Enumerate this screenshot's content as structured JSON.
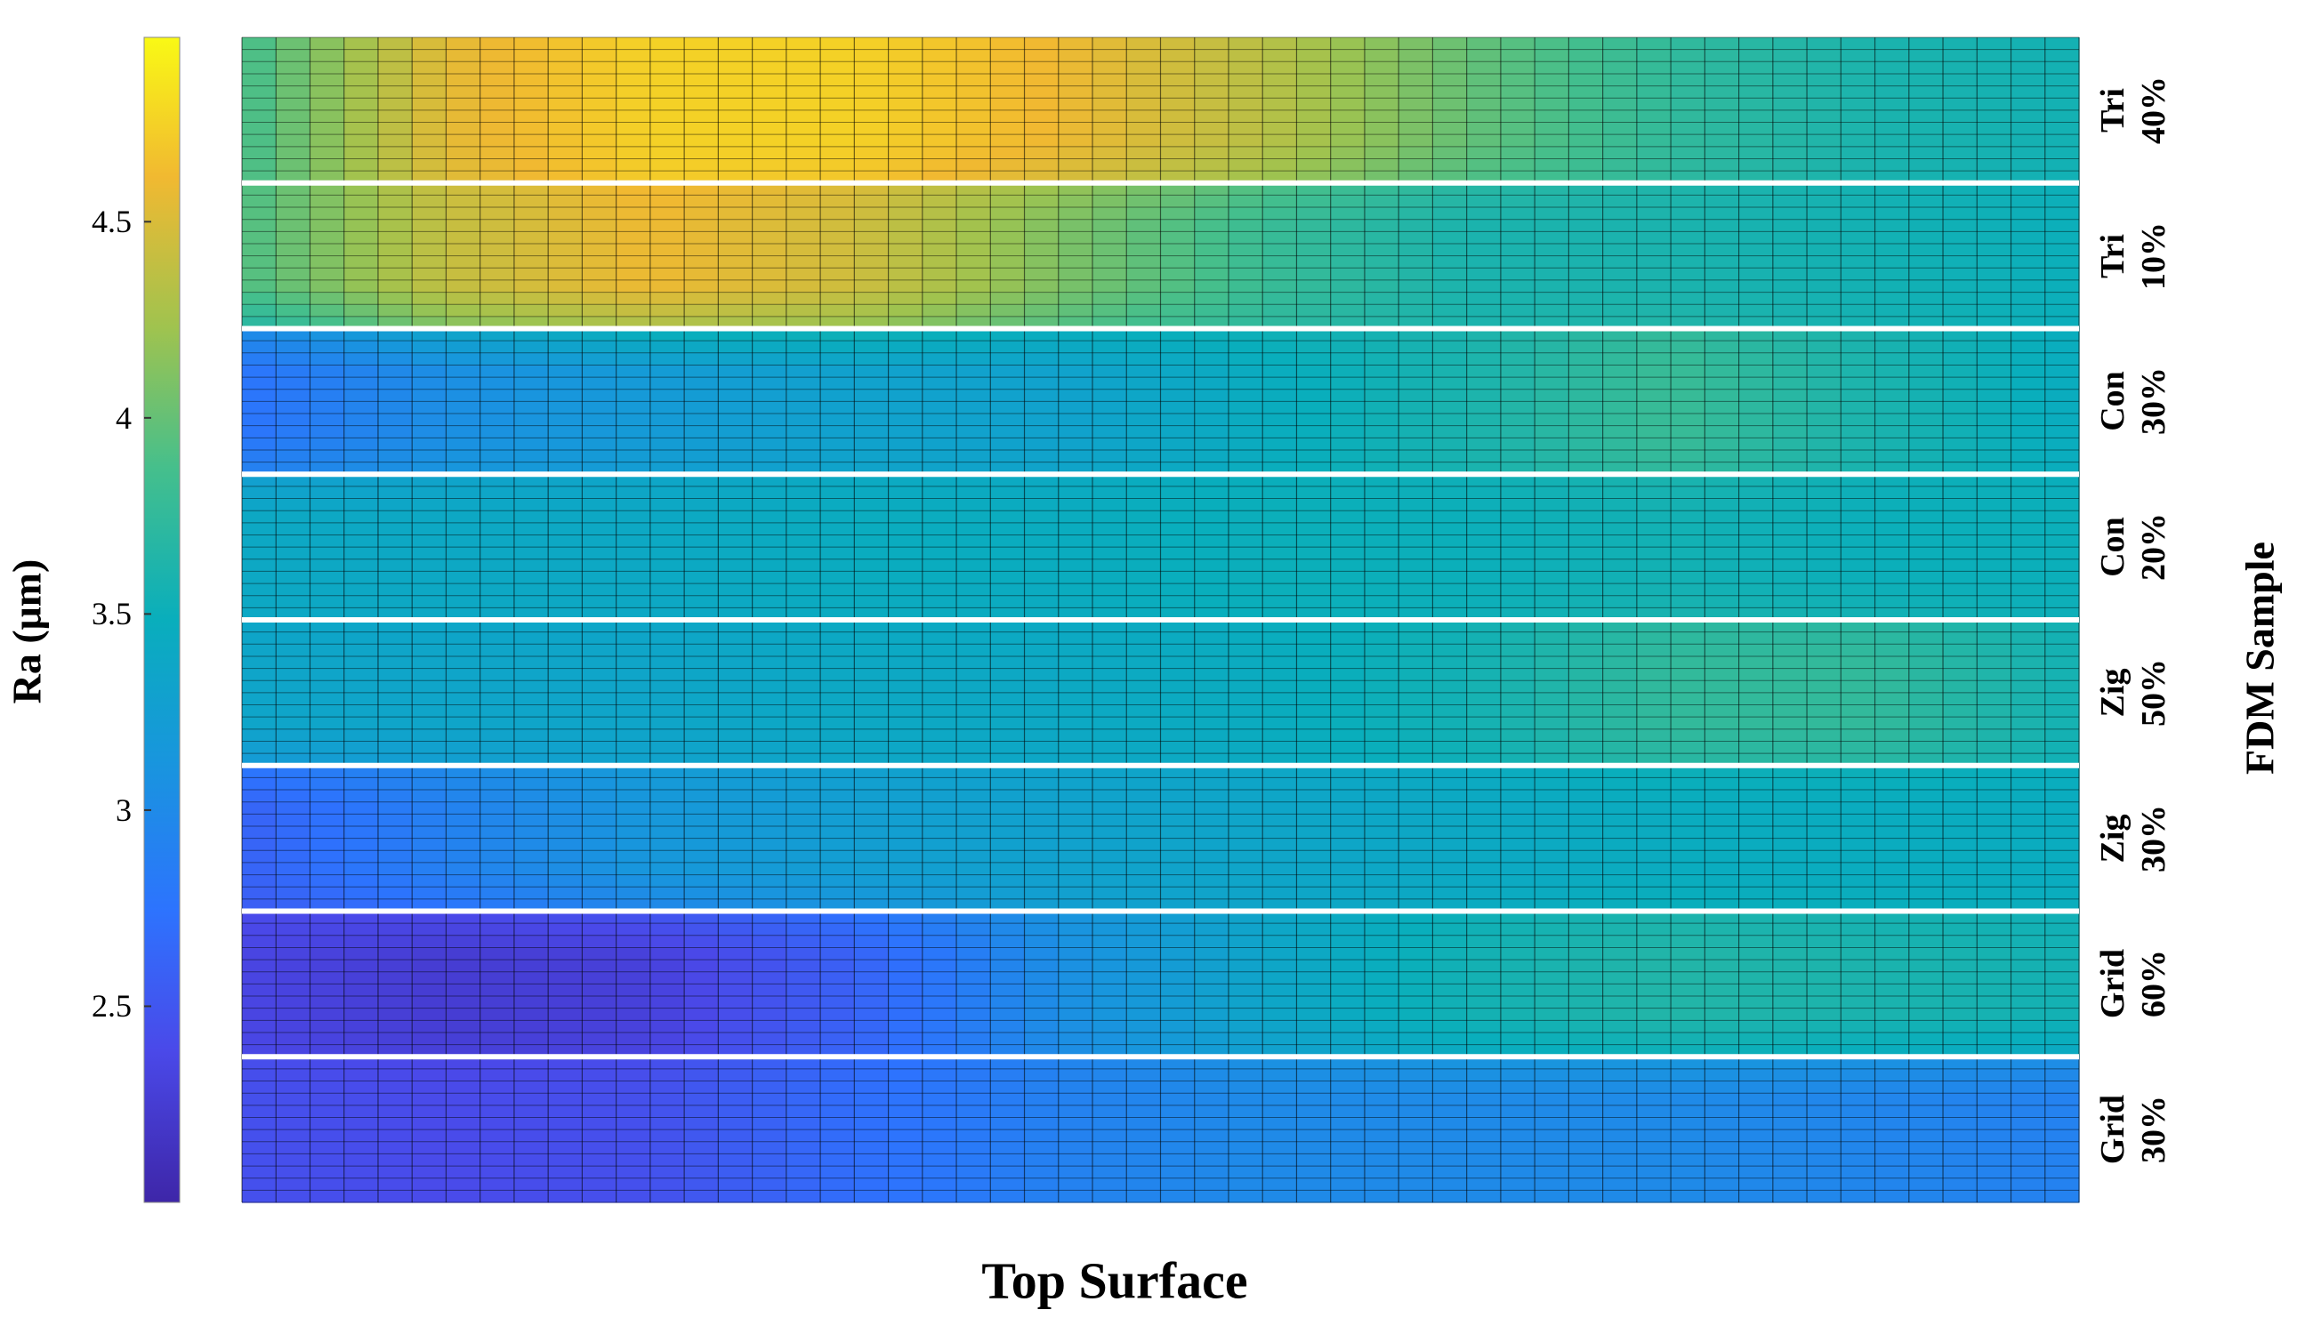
{
  "chart_data": {
    "type": "heatmap",
    "xlabel": "Top Surface",
    "ylabel": "FDM Sample",
    "colorbar": {
      "label": "Ra (μm)",
      "range": [
        2.0,
        4.97
      ],
      "ticks": [
        "2.5",
        "3",
        "3.5",
        "4",
        "4.5"
      ],
      "colormap": "parula"
    },
    "columns": 54,
    "sub_rows_per_sample": 12,
    "samples": [
      {
        "label_top": "Tri",
        "label_bottom": "40%",
        "profile": [
          3.85,
          4.55,
          4.75,
          4.75,
          4.6,
          4.35,
          4.0,
          3.75,
          3.6,
          3.55
        ]
      },
      {
        "label_top": "Tri",
        "label_bottom": "10%",
        "profile": [
          3.9,
          4.4,
          4.6,
          4.45,
          4.1,
          3.8,
          3.6,
          3.6,
          3.55,
          3.5
        ]
      },
      {
        "label_top": "Con",
        "label_bottom": "30%",
        "profile": [
          2.75,
          3.05,
          3.2,
          3.3,
          3.3,
          3.45,
          3.6,
          3.8,
          3.6,
          3.45
        ]
      },
      {
        "label_top": "Con",
        "label_bottom": "20%",
        "profile": [
          3.4,
          3.4,
          3.4,
          3.45,
          3.45,
          3.5,
          3.5,
          3.55,
          3.5,
          3.5
        ]
      },
      {
        "label_top": "Zig",
        "label_bottom": "50%",
        "profile": [
          3.35,
          3.35,
          3.35,
          3.4,
          3.4,
          3.45,
          3.55,
          3.75,
          3.75,
          3.55
        ]
      },
      {
        "label_top": "Zig",
        "label_bottom": "30%",
        "profile": [
          2.6,
          2.9,
          3.15,
          3.25,
          3.3,
          3.35,
          3.4,
          3.45,
          3.45,
          3.45
        ]
      },
      {
        "label_top": "Grid",
        "label_bottom": "60%",
        "profile": [
          2.35,
          2.25,
          2.3,
          2.6,
          3.05,
          3.35,
          3.55,
          3.65,
          3.6,
          3.55
        ]
      },
      {
        "label_top": "Grid",
        "label_bottom": "30%",
        "profile": [
          2.45,
          2.4,
          2.45,
          2.7,
          2.9,
          3.0,
          3.0,
          3.0,
          2.95,
          2.9
        ]
      }
    ],
    "separator_color": "#ffffff",
    "grid_line_color": "#000000"
  }
}
